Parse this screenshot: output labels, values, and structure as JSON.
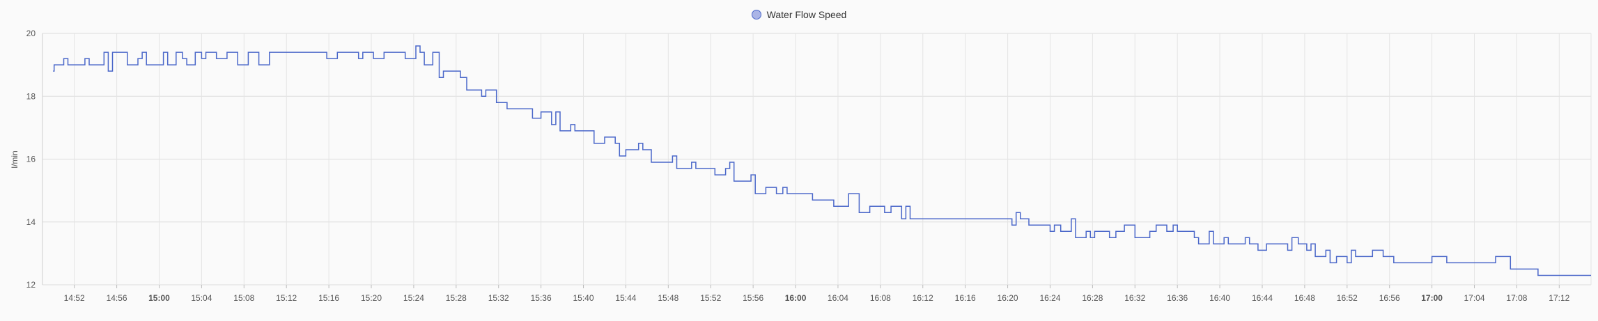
{
  "chart_data": {
    "type": "line",
    "step": true,
    "ylabel": "l/min",
    "ylim": [
      12,
      20
    ],
    "yticks": [
      12,
      14,
      16,
      18,
      20
    ],
    "grid": true,
    "legend_position": "top-center",
    "xrange": [
      "14:49",
      "17:15"
    ],
    "xticks": [
      {
        "label": "14:52",
        "bold": false
      },
      {
        "label": "14:56",
        "bold": false
      },
      {
        "label": "15:00",
        "bold": true
      },
      {
        "label": "15:04",
        "bold": false
      },
      {
        "label": "15:08",
        "bold": false
      },
      {
        "label": "15:12",
        "bold": false
      },
      {
        "label": "15:16",
        "bold": false
      },
      {
        "label": "15:20",
        "bold": false
      },
      {
        "label": "15:24",
        "bold": false
      },
      {
        "label": "15:28",
        "bold": false
      },
      {
        "label": "15:32",
        "bold": false
      },
      {
        "label": "15:36",
        "bold": false
      },
      {
        "label": "15:40",
        "bold": false
      },
      {
        "label": "15:44",
        "bold": false
      },
      {
        "label": "15:48",
        "bold": false
      },
      {
        "label": "15:52",
        "bold": false
      },
      {
        "label": "15:56",
        "bold": false
      },
      {
        "label": "16:00",
        "bold": true
      },
      {
        "label": "16:04",
        "bold": false
      },
      {
        "label": "16:08",
        "bold": false
      },
      {
        "label": "16:12",
        "bold": false
      },
      {
        "label": "16:16",
        "bold": false
      },
      {
        "label": "16:20",
        "bold": false
      },
      {
        "label": "16:24",
        "bold": false
      },
      {
        "label": "16:28",
        "bold": false
      },
      {
        "label": "16:32",
        "bold": false
      },
      {
        "label": "16:36",
        "bold": false
      },
      {
        "label": "16:40",
        "bold": false
      },
      {
        "label": "16:44",
        "bold": false
      },
      {
        "label": "16:48",
        "bold": false
      },
      {
        "label": "16:52",
        "bold": false
      },
      {
        "label": "16:56",
        "bold": false
      },
      {
        "label": "17:00",
        "bold": true
      },
      {
        "label": "17:04",
        "bold": false
      },
      {
        "label": "17:08",
        "bold": false
      },
      {
        "label": "17:12",
        "bold": false
      }
    ],
    "series": [
      {
        "name": "Water Flow Speed",
        "color": "#4a67c9",
        "points": [
          [
            "14:50",
            18.8
          ],
          [
            "14:50.1",
            19.0
          ],
          [
            "14:51",
            19.2
          ],
          [
            "14:51.4",
            19.0
          ],
          [
            "14:53",
            19.2
          ],
          [
            "14:53.4",
            19.0
          ],
          [
            "14:54.8",
            19.4
          ],
          [
            "14:55.2",
            18.8
          ],
          [
            "14:55.6",
            19.4
          ],
          [
            "14:57",
            19.0
          ],
          [
            "14:58",
            19.2
          ],
          [
            "14:58.4",
            19.4
          ],
          [
            "14:58.8",
            19.0
          ],
          [
            "15:00.4",
            19.4
          ],
          [
            "15:00.8",
            19.0
          ],
          [
            "15:01.6",
            19.4
          ],
          [
            "15:02.2",
            19.2
          ],
          [
            "15:02.6",
            19.0
          ],
          [
            "15:03.4",
            19.4
          ],
          [
            "15:04",
            19.2
          ],
          [
            "15:04.4",
            19.4
          ],
          [
            "15:05.4",
            19.2
          ],
          [
            "15:06.4",
            19.4
          ],
          [
            "15:07.4",
            19.0
          ],
          [
            "15:08.4",
            19.4
          ],
          [
            "15:09.4",
            19.0
          ],
          [
            "15:10.4",
            19.4
          ],
          [
            "15:15.8",
            19.2
          ],
          [
            "15:16.8",
            19.4
          ],
          [
            "15:18.8",
            19.2
          ],
          [
            "15:19.2",
            19.4
          ],
          [
            "15:20.2",
            19.2
          ],
          [
            "15:21.2",
            19.4
          ],
          [
            "15:23.2",
            19.2
          ],
          [
            "15:24.2",
            19.6
          ],
          [
            "15:24.6",
            19.4
          ],
          [
            "15:25",
            19.0
          ],
          [
            "15:25.8",
            19.4
          ],
          [
            "15:26.4",
            18.6
          ],
          [
            "15:26.8",
            18.8
          ],
          [
            "15:28.4",
            18.6
          ],
          [
            "15:29",
            18.2
          ],
          [
            "15:30.4",
            18.0
          ],
          [
            "15:30.8",
            18.2
          ],
          [
            "15:31.8",
            17.8
          ],
          [
            "15:32.8",
            17.6
          ],
          [
            "15:35.2",
            17.3
          ],
          [
            "15:36",
            17.5
          ],
          [
            "15:37",
            17.1
          ],
          [
            "15:37.4",
            17.5
          ],
          [
            "15:37.8",
            16.9
          ],
          [
            "15:38.8",
            17.1
          ],
          [
            "15:39.2",
            16.9
          ],
          [
            "15:41",
            16.5
          ],
          [
            "15:42",
            16.7
          ],
          [
            "15:43",
            16.5
          ],
          [
            "15:43.4",
            16.1
          ],
          [
            "15:44",
            16.3
          ],
          [
            "15:45.2",
            16.5
          ],
          [
            "15:45.6",
            16.3
          ],
          [
            "15:46.4",
            15.9
          ],
          [
            "15:48.4",
            16.1
          ],
          [
            "15:48.8",
            15.7
          ],
          [
            "15:50.2",
            15.9
          ],
          [
            "15:50.6",
            15.7
          ],
          [
            "15:52.4",
            15.5
          ],
          [
            "15:53.4",
            15.7
          ],
          [
            "15:53.8",
            15.9
          ],
          [
            "15:54.2",
            15.3
          ],
          [
            "15:55.8",
            15.5
          ],
          [
            "15:56.2",
            14.9
          ],
          [
            "15:57.2",
            15.1
          ],
          [
            "15:58.2",
            14.9
          ],
          [
            "15:58.8",
            15.1
          ],
          [
            "15:59.2",
            14.9
          ],
          [
            "16:01.6",
            14.7
          ],
          [
            "16:03.6",
            14.5
          ],
          [
            "16:05",
            14.9
          ],
          [
            "16:06",
            14.3
          ],
          [
            "16:07",
            14.5
          ],
          [
            "16:08.4",
            14.3
          ],
          [
            "16:09",
            14.5
          ],
          [
            "16:10",
            14.1
          ],
          [
            "16:10.4",
            14.5
          ],
          [
            "16:10.8",
            14.1
          ],
          [
            "16:20.4",
            13.9
          ],
          [
            "16:20.8",
            14.3
          ],
          [
            "16:21.2",
            14.1
          ],
          [
            "16:22",
            13.9
          ],
          [
            "16:24",
            13.7
          ],
          [
            "16:24.4",
            13.9
          ],
          [
            "16:25",
            13.7
          ],
          [
            "16:26",
            14.1
          ],
          [
            "16:26.4",
            13.5
          ],
          [
            "16:27.4",
            13.7
          ],
          [
            "16:27.8",
            13.5
          ],
          [
            "16:28.2",
            13.7
          ],
          [
            "16:29.6",
            13.5
          ],
          [
            "16:30.2",
            13.7
          ],
          [
            "16:31",
            13.9
          ],
          [
            "16:32",
            13.5
          ],
          [
            "16:33.4",
            13.7
          ],
          [
            "16:34",
            13.9
          ],
          [
            "16:35",
            13.7
          ],
          [
            "16:35.6",
            13.9
          ],
          [
            "16:36",
            13.7
          ],
          [
            "16:37.6",
            13.5
          ],
          [
            "16:38",
            13.3
          ],
          [
            "16:39",
            13.7
          ],
          [
            "16:39.4",
            13.3
          ],
          [
            "16:40.4",
            13.5
          ],
          [
            "16:40.8",
            13.3
          ],
          [
            "16:42.4",
            13.5
          ],
          [
            "16:42.8",
            13.3
          ],
          [
            "16:43.6",
            13.1
          ],
          [
            "16:44.4",
            13.3
          ],
          [
            "16:46.4",
            13.1
          ],
          [
            "16:46.8",
            13.5
          ],
          [
            "16:47.4",
            13.3
          ],
          [
            "16:48.2",
            13.1
          ],
          [
            "16:48.6",
            13.3
          ],
          [
            "16:49",
            12.9
          ],
          [
            "16:50",
            13.1
          ],
          [
            "16:50.4",
            12.7
          ],
          [
            "16:51",
            12.9
          ],
          [
            "16:52",
            12.7
          ],
          [
            "16:52.4",
            13.1
          ],
          [
            "16:52.8",
            12.9
          ],
          [
            "16:54.4",
            13.1
          ],
          [
            "16:55.4",
            12.9
          ],
          [
            "16:56.4",
            12.7
          ],
          [
            "17:00",
            12.9
          ],
          [
            "17:01.4",
            12.7
          ],
          [
            "17:06",
            12.9
          ],
          [
            "17:07.4",
            12.5
          ],
          [
            "17:10",
            12.3
          ],
          [
            "17:15",
            12.3
          ]
        ]
      }
    ]
  }
}
